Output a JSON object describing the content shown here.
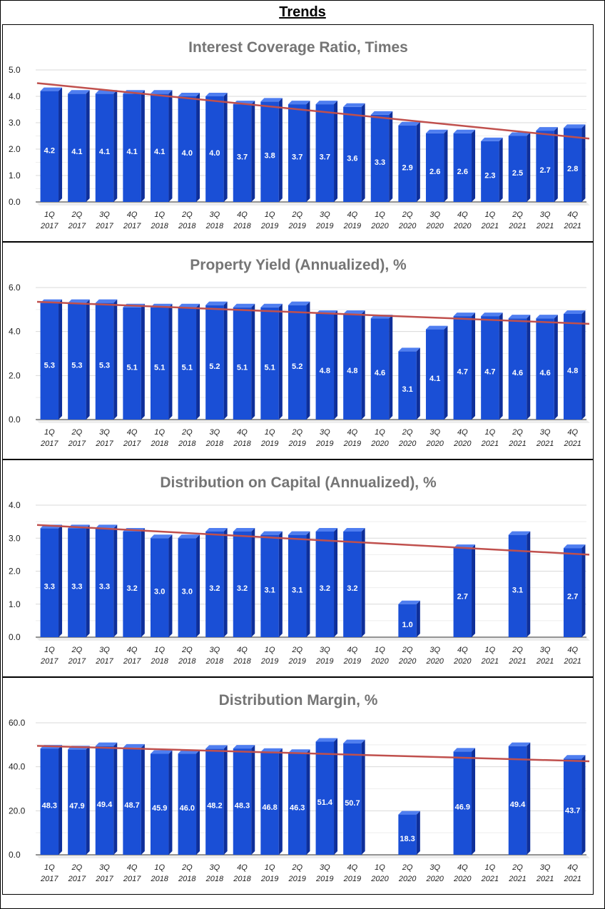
{
  "page": {
    "title": "Trends"
  },
  "colors": {
    "bar_front": "#1a4fd6",
    "bar_side": "#0e2f9a",
    "bar_top": "#4f7ef0",
    "trend": "#c0504d",
    "grid": "#d9d9d9"
  },
  "chart_data": [
    {
      "type": "bar",
      "title": "Interest Coverage Ratio, Times",
      "categories": [
        [
          "1Q",
          "2017"
        ],
        [
          "2Q",
          "2017"
        ],
        [
          "3Q",
          "2017"
        ],
        [
          "4Q",
          "2017"
        ],
        [
          "1Q",
          "2018"
        ],
        [
          "2Q",
          "2018"
        ],
        [
          "3Q",
          "2018"
        ],
        [
          "4Q",
          "2018"
        ],
        [
          "1Q",
          "2019"
        ],
        [
          "2Q",
          "2019"
        ],
        [
          "3Q",
          "2019"
        ],
        [
          "4Q",
          "2019"
        ],
        [
          "1Q",
          "2020"
        ],
        [
          "2Q",
          "2020"
        ],
        [
          "3Q",
          "2020"
        ],
        [
          "4Q",
          "2020"
        ],
        [
          "1Q",
          "2021"
        ],
        [
          "2Q",
          "2021"
        ],
        [
          "3Q",
          "2021"
        ],
        [
          "4Q",
          "2021"
        ]
      ],
      "values": [
        4.2,
        4.1,
        4.1,
        4.1,
        4.1,
        4.0,
        4.0,
        3.7,
        3.8,
        3.7,
        3.7,
        3.6,
        3.3,
        2.9,
        2.6,
        2.6,
        2.3,
        2.5,
        2.7,
        2.8
      ],
      "labels": [
        "4.2",
        "4.1",
        "4.1",
        "4.1",
        "4.1",
        "4.0",
        "4.0",
        "3.7",
        "3.8",
        "3.7",
        "3.7",
        "3.6",
        "3.3",
        "2.9",
        "2.6",
        "2.6",
        "2.3",
        "2.5",
        "2.7",
        "2.8"
      ],
      "yticks": [
        "0.0",
        "1.0",
        "2.0",
        "3.0",
        "4.0",
        "5.0"
      ],
      "ylim": [
        0,
        5
      ],
      "trendline": [
        4.5,
        2.4
      ],
      "xlabel": "",
      "ylabel": ""
    },
    {
      "type": "bar",
      "title": "Property Yield (Annualized), %",
      "categories": [
        [
          "1Q",
          "2017"
        ],
        [
          "2Q",
          "2017"
        ],
        [
          "3Q",
          "2017"
        ],
        [
          "4Q",
          "2017"
        ],
        [
          "1Q",
          "2018"
        ],
        [
          "2Q",
          "2018"
        ],
        [
          "3Q",
          "2018"
        ],
        [
          "4Q",
          "2018"
        ],
        [
          "1Q",
          "2019"
        ],
        [
          "2Q",
          "2019"
        ],
        [
          "3Q",
          "2019"
        ],
        [
          "4Q",
          "2019"
        ],
        [
          "1Q",
          "2020"
        ],
        [
          "2Q",
          "2020"
        ],
        [
          "3Q",
          "2020"
        ],
        [
          "4Q",
          "2020"
        ],
        [
          "1Q",
          "2021"
        ],
        [
          "2Q",
          "2021"
        ],
        [
          "3Q",
          "2021"
        ],
        [
          "4Q",
          "2021"
        ]
      ],
      "values": [
        5.3,
        5.3,
        5.3,
        5.1,
        5.1,
        5.1,
        5.2,
        5.1,
        5.1,
        5.2,
        4.8,
        4.8,
        4.6,
        3.1,
        4.1,
        4.7,
        4.7,
        4.6,
        4.6,
        4.8
      ],
      "labels": [
        "5.3",
        "5.3",
        "5.3",
        "5.1",
        "5.1",
        "5.1",
        "5.2",
        "5.1",
        "5.1",
        "5.2",
        "4.8",
        "4.8",
        "4.6",
        "3.1",
        "4.1",
        "4.7",
        "4.7",
        "4.6",
        "4.6",
        "4.8"
      ],
      "yticks": [
        "0.0",
        "2.0",
        "4.0",
        "6.0"
      ],
      "ylim": [
        0,
        6
      ],
      "trendline": [
        5.35,
        4.35
      ],
      "xlabel": "",
      "ylabel": ""
    },
    {
      "type": "bar",
      "title": "Distribution on Capital (Annualized), %",
      "categories": [
        [
          "1Q",
          "2017"
        ],
        [
          "2Q",
          "2017"
        ],
        [
          "3Q",
          "2017"
        ],
        [
          "4Q",
          "2017"
        ],
        [
          "1Q",
          "2018"
        ],
        [
          "2Q",
          "2018"
        ],
        [
          "3Q",
          "2018"
        ],
        [
          "4Q",
          "2018"
        ],
        [
          "1Q",
          "2019"
        ],
        [
          "2Q",
          "2019"
        ],
        [
          "3Q",
          "2019"
        ],
        [
          "4Q",
          "2019"
        ],
        [
          "1Q",
          "2020"
        ],
        [
          "2Q",
          "2020"
        ],
        [
          "3Q",
          "2020"
        ],
        [
          "4Q",
          "2020"
        ],
        [
          "1Q",
          "2021"
        ],
        [
          "2Q",
          "2021"
        ],
        [
          "3Q",
          "2021"
        ],
        [
          "4Q",
          "2021"
        ]
      ],
      "values": [
        3.3,
        3.3,
        3.3,
        3.2,
        3.0,
        3.0,
        3.2,
        3.2,
        3.1,
        3.1,
        3.2,
        3.2,
        null,
        1.0,
        null,
        2.7,
        null,
        3.1,
        null,
        2.7
      ],
      "labels": [
        "3.3",
        "3.3",
        "3.3",
        "3.2",
        "3.0",
        "3.0",
        "3.2",
        "3.2",
        "3.1",
        "3.1",
        "3.2",
        "3.2",
        "",
        "1.0",
        "",
        "2.7",
        "",
        "3.1",
        "",
        "2.7"
      ],
      "yticks": [
        "0.0",
        "1.0",
        "2.0",
        "3.0",
        "4.0"
      ],
      "ylim": [
        0,
        4
      ],
      "trendline": [
        3.4,
        2.5
      ],
      "xlabel": "",
      "ylabel": ""
    },
    {
      "type": "bar",
      "title": "Distribution Margin, %",
      "categories": [
        [
          "1Q",
          "2017"
        ],
        [
          "2Q",
          "2017"
        ],
        [
          "3Q",
          "2017"
        ],
        [
          "4Q",
          "2017"
        ],
        [
          "1Q",
          "2018"
        ],
        [
          "2Q",
          "2018"
        ],
        [
          "3Q",
          "2018"
        ],
        [
          "4Q",
          "2018"
        ],
        [
          "1Q",
          "2019"
        ],
        [
          "2Q",
          "2019"
        ],
        [
          "3Q",
          "2019"
        ],
        [
          "4Q",
          "2019"
        ],
        [
          "1Q",
          "2020"
        ],
        [
          "2Q",
          "2020"
        ],
        [
          "3Q",
          "2020"
        ],
        [
          "4Q",
          "2020"
        ],
        [
          "1Q",
          "2021"
        ],
        [
          "2Q",
          "2021"
        ],
        [
          "3Q",
          "2021"
        ],
        [
          "4Q",
          "2021"
        ]
      ],
      "values": [
        48.3,
        47.9,
        49.4,
        48.7,
        45.9,
        46.0,
        48.2,
        48.3,
        46.8,
        46.3,
        51.4,
        50.7,
        null,
        18.3,
        null,
        46.9,
        null,
        49.4,
        null,
        43.7
      ],
      "labels": [
        "48.3",
        "47.9",
        "49.4",
        "48.7",
        "45.9",
        "46.0",
        "48.2",
        "48.3",
        "46.8",
        "46.3",
        "51.4",
        "50.7",
        "",
        "18.3",
        "",
        "46.9",
        "",
        "49.4",
        "",
        "43.7"
      ],
      "yticks": [
        "0.0",
        "20.0",
        "40.0",
        "60.0"
      ],
      "ylim": [
        0,
        60
      ],
      "trendline": [
        49.5,
        42.5
      ],
      "xlabel": "",
      "ylabel": ""
    }
  ]
}
